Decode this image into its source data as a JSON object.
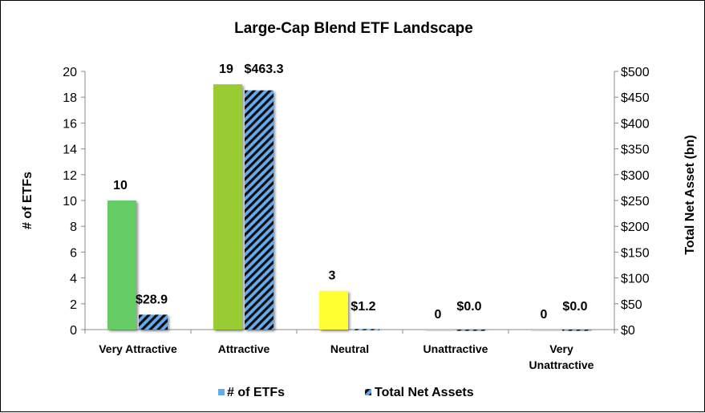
{
  "chart_data": {
    "type": "bar",
    "title": "Large-Cap Blend ETF Landscape",
    "categories": [
      "Very Attractive",
      "Attractive",
      "Neutral",
      "Unattractive",
      "Very Unattractive"
    ],
    "category_lines": [
      [
        "Very Attractive"
      ],
      [
        "Attractive"
      ],
      [
        "Neutral"
      ],
      [
        "Unattractive"
      ],
      [
        "Very",
        "Unattractive"
      ]
    ],
    "series": [
      {
        "name": "# of ETFs",
        "axis": "left",
        "values": [
          10,
          19,
          3,
          0,
          0
        ],
        "labels": [
          "10",
          "19",
          "3",
          "0",
          "0"
        ],
        "colors": [
          "#66cc66",
          "#99cc33",
          "#ffff33",
          "#cccccc",
          "#cccccc"
        ],
        "legend_color": "#66aaee"
      },
      {
        "name": "Total Net Assets",
        "axis": "right",
        "values": [
          28.9,
          463.3,
          1.2,
          0.0,
          0.0
        ],
        "labels": [
          "$28.9",
          "$463.3",
          "$1.2",
          "$0.0",
          "$0.0"
        ],
        "fill": "hatched",
        "colors": [
          "#66aaee",
          "#111111"
        ]
      }
    ],
    "ylabel": "# of ETFs",
    "ylabel_right": "Total Net Asset (bn)",
    "ylim": [
      0,
      20
    ],
    "ylim_right": [
      0,
      500
    ],
    "yticks": [
      "0",
      "2",
      "4",
      "6",
      "8",
      "10",
      "12",
      "14",
      "16",
      "18",
      "20"
    ],
    "yticks_right": [
      "$0",
      "$50",
      "$100",
      "$150",
      "$200",
      "$250",
      "$300",
      "$350",
      "$400",
      "$450",
      "$500"
    ],
    "grid": false,
    "legend_position": "bottom"
  }
}
